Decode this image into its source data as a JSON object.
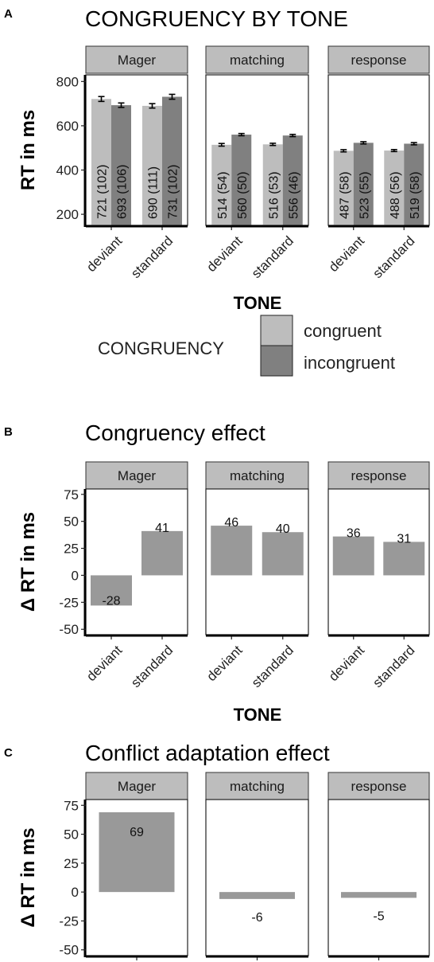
{
  "colors": {
    "congruent": "#bdbdbd",
    "incongruent": "#808080",
    "effect": "#999999",
    "strip": "#bdbdbd"
  },
  "chart_data": [
    {
      "panel_letter": "A",
      "type": "bar",
      "title": "CONGRUENCY BY TONE",
      "ylabel": "RT in ms",
      "xlabel": "TONE",
      "ylim": [
        150,
        830
      ],
      "yticks": [
        200,
        400,
        600,
        800
      ],
      "facets": [
        "Mager",
        "matching",
        "response"
      ],
      "categories": [
        "deviant",
        "standard"
      ],
      "legend": {
        "title": "CONGRUENCY",
        "entries": [
          "congruent",
          "incongruent"
        ],
        "placement": "bottom"
      },
      "series": [
        {
          "name": "congruent",
          "values": [
            [
              721,
              690
            ],
            [
              514,
              516
            ],
            [
              487,
              488
            ]
          ],
          "errors": [
            [
              22,
              20
            ],
            [
              12,
              10
            ],
            [
              10,
              9
            ]
          ],
          "labels": [
            [
              "721 (102)",
              "690 (111)"
            ],
            [
              "514 (54)",
              "516 (53)"
            ],
            [
              "487 (58)",
              "488 (56)"
            ]
          ]
        },
        {
          "name": "incongruent",
          "values": [
            [
              693,
              731
            ],
            [
              560,
              556
            ],
            [
              523,
              519
            ]
          ],
          "errors": [
            [
              20,
              22
            ],
            [
              10,
              10
            ],
            [
              10,
              10
            ]
          ],
          "labels": [
            [
              "693 (106)",
              "731 (102)"
            ],
            [
              "560 (50)",
              "556 (46)"
            ],
            [
              "523 (55)",
              "519 (58)"
            ]
          ]
        }
      ]
    },
    {
      "panel_letter": "B",
      "type": "bar",
      "title": "Congruency effect",
      "ylabel": "Δ RT in ms",
      "xlabel": "TONE",
      "ylim": [
        -55,
        80
      ],
      "yticks": [
        -50,
        -25,
        0,
        25,
        50,
        75
      ],
      "facets": [
        "Mager",
        "matching",
        "response"
      ],
      "categories": [
        "deviant",
        "standard"
      ],
      "values": [
        [
          -28,
          41
        ],
        [
          46,
          40
        ],
        [
          36,
          31
        ]
      ],
      "labels": [
        [
          "-28",
          "41"
        ],
        [
          "46",
          "40"
        ],
        [
          "36",
          "31"
        ]
      ]
    },
    {
      "panel_letter": "C",
      "type": "bar",
      "title": "Conflict adaptation effect",
      "ylabel": "Δ RT in ms",
      "xlabel": "",
      "ylim": [
        -55,
        80
      ],
      "yticks": [
        -50,
        -25,
        0,
        25,
        50,
        75
      ],
      "facets": [
        "Mager",
        "matching",
        "response"
      ],
      "values": [
        69,
        -6,
        -5
      ],
      "labels": [
        "69",
        "-6",
        "-5"
      ]
    }
  ]
}
